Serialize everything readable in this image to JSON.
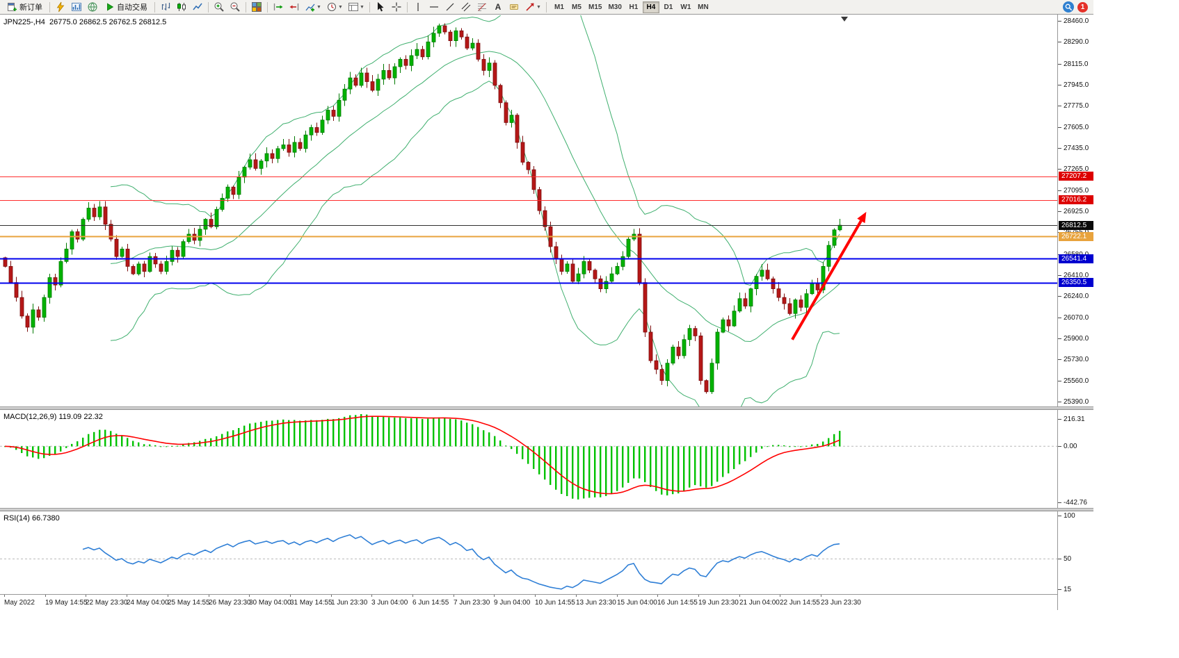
{
  "toolbar": {
    "new_order_label": "新订单",
    "autotrade_label": "自动交易",
    "timeframes": [
      "M1",
      "M5",
      "M15",
      "M30",
      "H1",
      "H4",
      "D1",
      "W1",
      "MN"
    ],
    "active_timeframe": "H4",
    "notification_count": "1",
    "text_tool_glyph": "A"
  },
  "chart_data": {
    "type": "candlestick",
    "symbol": "JPN225-",
    "timeframe": "H4",
    "symbol_ohlc_label": "JPN225-,H4  26775.0 26862.5 26762.5 26812.5",
    "last_ohlc": {
      "open": 26775.0,
      "high": 26862.5,
      "low": 26762.5,
      "close": 26812.5
    },
    "price_axis": {
      "min": 25390.0,
      "max": 28460.0,
      "ticks": [
        28460.0,
        28290.0,
        28115.0,
        27945.0,
        27775.0,
        27605.0,
        27435.0,
        27265.0,
        27095.0,
        26925.0,
        26755.0,
        26580.0,
        26410.0,
        26240.0,
        26070.0,
        25900.0,
        25730.0,
        25560.0,
        25390.0
      ]
    },
    "candles": {
      "first_open": 26550,
      "closes": [
        26480,
        26350,
        26230,
        26080,
        25990,
        26130,
        26070,
        26230,
        26390,
        26330,
        26520,
        26620,
        26760,
        26700,
        26860,
        26950,
        26880,
        26960,
        26820,
        26700,
        26560,
        26620,
        26480,
        26420,
        26500,
        26440,
        26560,
        26500,
        26440,
        26520,
        26610,
        26560,
        26680,
        26740,
        26690,
        26780,
        26860,
        26800,
        26940,
        27030,
        27120,
        27060,
        27200,
        27280,
        27340,
        27270,
        27330,
        27390,
        27350,
        27430,
        27460,
        27400,
        27480,
        27430,
        27540,
        27600,
        27560,
        27660,
        27740,
        27690,
        27820,
        27910,
        28000,
        27940,
        28040,
        27970,
        27900,
        27990,
        28060,
        28000,
        28090,
        28150,
        28100,
        28180,
        28230,
        28170,
        28290,
        28360,
        28420,
        28370,
        28300,
        28380,
        28330,
        28240,
        28280,
        28150,
        28060,
        28120,
        27940,
        27800,
        27640,
        27700,
        27480,
        27320,
        27260,
        27100,
        26930,
        26800,
        26640,
        26540,
        26440,
        26500,
        26360,
        26420,
        26520,
        26450,
        26380,
        26300,
        26360,
        26420,
        26480,
        26560,
        26700,
        26740,
        26350,
        25950,
        25720,
        25650,
        25560,
        25700,
        25830,
        25760,
        25890,
        25980,
        25920,
        25560,
        25470,
        25700,
        25950,
        26050,
        26000,
        26120,
        26220,
        26160,
        26300,
        26400,
        26450,
        26380,
        26300,
        26230,
        26180,
        26100,
        26210,
        26150,
        26260,
        26340,
        26290,
        26480,
        26650,
        26775,
        26812.5
      ]
    },
    "horizontal_lines": [
      {
        "value": 27207.2,
        "color": "#ff2d2d",
        "width": 1,
        "label_bg": "#dd0000"
      },
      {
        "value": 27016.2,
        "color": "#ff2d2d",
        "width": 1,
        "label_bg": "#dd0000"
      },
      {
        "value": 26812.5,
        "color": "#303030",
        "width": 1,
        "label_bg": "#0a0a0a"
      },
      {
        "value": 26722.1,
        "color": "#e8a33d",
        "width": 2,
        "label_bg": "#e8a33d"
      },
      {
        "value": 26541.4,
        "color": "#0000ee",
        "width": 2,
        "label_bg": "#0000cf"
      },
      {
        "value": 26350.5,
        "color": "#0000ee",
        "width": 2,
        "label_bg": "#0000cf"
      }
    ],
    "indicators": {
      "bollinger": {
        "period": 20,
        "deviation": 2,
        "color": "#3faf6e"
      },
      "macd": {
        "label": "MACD(12,26,9) 119.09 22.32",
        "params": [
          12,
          26,
          9
        ],
        "value": 119.09,
        "signal_value": 22.32,
        "axis": [
          216.31,
          0,
          -442.76
        ],
        "hist_color": "#00c200",
        "signal_color": "#ff0000"
      },
      "rsi": {
        "label": "RSI(14) 66.7380",
        "period": 14,
        "value": 66.738,
        "axis": [
          100,
          50,
          15
        ],
        "color": "#2f7fd6"
      }
    },
    "time_labels": [
      "May 2022",
      "19 May 14:55",
      "22 May 23:30",
      "24 May 04:00",
      "25 May 14:55",
      "26 May 23:30",
      "30 May 04:00",
      "31 May 14:55",
      "1 Jun 23:30",
      "3 Jun 04:00",
      "6 Jun 14:55",
      "7 Jun 23:30",
      "9 Jun 04:00",
      "10 Jun 14:55",
      "13 Jun 23:30",
      "15 Jun 04:00",
      "16 Jun 14:55",
      "19 Jun 23:30",
      "21 Jun 04:00",
      "22 Jun 14:55",
      "23 Jun 23:30"
    ],
    "trend_arrow": {
      "from_bar": 141.5,
      "from_price": 25890,
      "to_bar": 154.8,
      "to_price": 26920,
      "color": "#ff0000"
    },
    "colors": {
      "up": "#00b200",
      "up_border": "#007a00",
      "down": "#b51717",
      "down_border": "#7c0e0e"
    }
  }
}
